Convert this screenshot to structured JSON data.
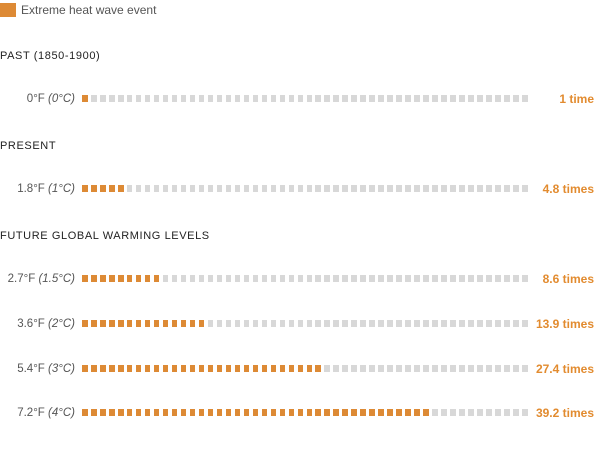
{
  "colors": {
    "event": "#dd8a35",
    "empty": "#d8d8d8",
    "value_text": "#e28b2f"
  },
  "legend": {
    "label": "Extreme heat wave event"
  },
  "chart_data": {
    "type": "bar",
    "total_squares": 50,
    "sections": [
      {
        "title": "PAST (1850-1900)",
        "rows": [
          0
        ]
      },
      {
        "title": "PRESENT",
        "rows": [
          1
        ]
      },
      {
        "title": "FUTURE GLOBAL WARMING LEVELS",
        "rows": [
          2,
          3,
          4,
          5
        ]
      }
    ],
    "rows": [
      {
        "label_f": "0°F",
        "label_c": "(0°C)",
        "value": 1,
        "value_label": "1 time"
      },
      {
        "label_f": "1.8°F",
        "label_c": "(1°C)",
        "value": 4.8,
        "value_label": "4.8 times"
      },
      {
        "label_f": "2.7°F",
        "label_c": "(1.5°C)",
        "value": 8.6,
        "value_label": "8.6 times"
      },
      {
        "label_f": "3.6°F",
        "label_c": "(2°C)",
        "value": 13.9,
        "value_label": "13.9 times"
      },
      {
        "label_f": "5.4°F",
        "label_c": "(3°C)",
        "value": 27.4,
        "value_label": "27.4 times"
      },
      {
        "label_f": "7.2°F",
        "label_c": "(4°C)",
        "value": 39.2,
        "value_label": "39.2 times"
      }
    ]
  }
}
